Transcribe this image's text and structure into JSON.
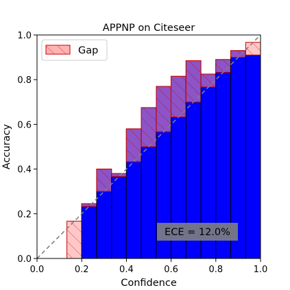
{
  "chart_data": {
    "type": "bar",
    "title": "APPNP on Citeseer",
    "xlabel": "Confidence",
    "ylabel": "Accuracy",
    "xlim": [
      0.0,
      1.0
    ],
    "ylim": [
      0.0,
      1.0
    ],
    "xticks": [
      "0.0",
      "0.2",
      "0.4",
      "0.6",
      "0.8",
      "1.0"
    ],
    "yticks": [
      "0.0",
      "0.2",
      "0.4",
      "0.6",
      "0.8",
      "1.0"
    ],
    "bin_width": 0.0667,
    "bins": [
      {
        "confidence": 0.167,
        "accuracy": 0.0
      },
      {
        "confidence": 0.233,
        "accuracy": 0.245
      },
      {
        "confidence": 0.3,
        "accuracy": 0.4
      },
      {
        "confidence": 0.367,
        "accuracy": 0.38
      },
      {
        "confidence": 0.433,
        "accuracy": 0.58
      },
      {
        "confidence": 0.5,
        "accuracy": 0.675
      },
      {
        "confidence": 0.567,
        "accuracy": 0.77
      },
      {
        "confidence": 0.633,
        "accuracy": 0.815
      },
      {
        "confidence": 0.7,
        "accuracy": 0.885
      },
      {
        "confidence": 0.767,
        "accuracy": 0.825
      },
      {
        "confidence": 0.833,
        "accuracy": 0.89
      },
      {
        "confidence": 0.9,
        "accuracy": 0.93
      },
      {
        "confidence": 0.967,
        "accuracy": 0.91
      }
    ],
    "legend": {
      "label": "Gap",
      "position": "top-left"
    },
    "annotation": "ECE = 12.0%",
    "reference_line": "perfect calibration diagonal (dashed)",
    "colors": {
      "accuracy_bar": "#0000ff",
      "accuracy_edge": "#000000",
      "gap_fill": "#ff9999",
      "gap_edge": "#cc0000",
      "diagonal": "#808080",
      "annotation_box": "#808080"
    }
  }
}
